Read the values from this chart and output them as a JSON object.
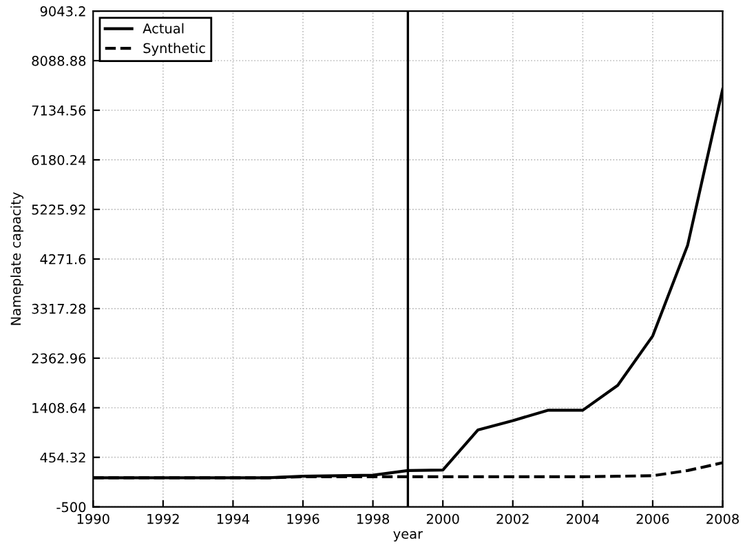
{
  "chart_data": {
    "type": "line",
    "xlabel": "year",
    "ylabel": "Nameplate capacity",
    "x": [
      1990,
      1991,
      1992,
      1993,
      1994,
      1995,
      1996,
      1997,
      1998,
      1999,
      2000,
      2001,
      2002,
      2003,
      2004,
      2005,
      2006,
      2007,
      2008
    ],
    "series": [
      {
        "name": "Actual",
        "color": "#000000",
        "line_style": "solid",
        "values": [
          60,
          60,
          60,
          60,
          60,
          60,
          90,
          100,
          110,
          200,
          210,
          980,
          1160,
          1360,
          1360,
          1840,
          2790,
          4540,
          7540
        ]
      },
      {
        "name": "Synthetic",
        "color": "#000000",
        "line_style": "dashed",
        "values": [
          60,
          60,
          60,
          60,
          60,
          60,
          80,
          80,
          80,
          80,
          80,
          80,
          80,
          80,
          80,
          90,
          100,
          200,
          350
        ]
      }
    ],
    "xlim": [
      1990,
      2008
    ],
    "xticks": [
      1990,
      1992,
      1994,
      1996,
      1998,
      2000,
      2002,
      2004,
      2006,
      2008
    ],
    "ylim": [
      -500,
      9043.2
    ],
    "yticks": [
      -500,
      454.32,
      1408.64,
      2362.96,
      3317.28,
      4271.6,
      5225.92,
      6180.24,
      7134.56,
      8088.88,
      9043.2
    ],
    "ref_lines": [
      {
        "axis": "x",
        "value": 1999,
        "color": "#000000",
        "line_style": "solid"
      }
    ],
    "grid": true,
    "legend": "top left",
    "marker": "none"
  }
}
